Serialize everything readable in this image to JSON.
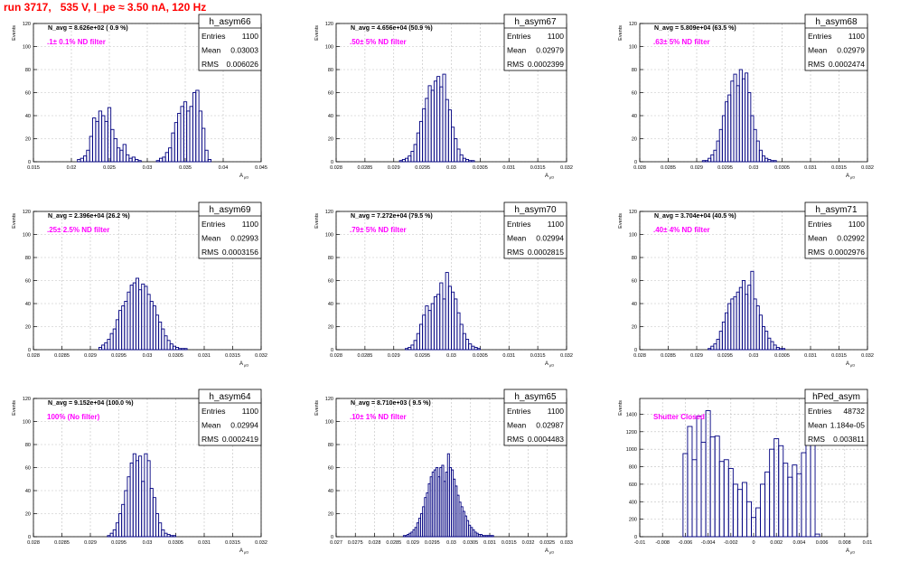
{
  "page": {
    "run_title": "run 3717,   535 V, I_pe ≈ 3.50 nA, 120 Hz"
  },
  "colors": {
    "hist": "#000080",
    "grid": "#bfbfbf",
    "note": "#ff00ff",
    "title": "#ff0000"
  },
  "chart_data": [
    {
      "type": "histogram",
      "name": "h_asym66",
      "stats": {
        "entries_label": "Entries",
        "entries": "1100",
        "mean_label": "Mean",
        "mean": "0.03003",
        "rms_label": "RMS",
        "rms": "0.006026"
      },
      "navg": "N_avg = 8.626e+02 ( 0.9 %)",
      "note": ".1± 0.1% ND filter",
      "ylabel": "Events",
      "xlabel": "A",
      "xlabel_sub": "μD",
      "xlim": [
        0.015,
        0.045
      ],
      "ylim": [
        0,
        120
      ],
      "xticks": [
        "0.015",
        "0.02",
        "0.025",
        "0.03",
        "0.035",
        "0.04",
        "0.045"
      ],
      "yticks": [
        "0",
        "20",
        "40",
        "60",
        "80",
        "100",
        "120"
      ],
      "x_edges": [
        0.0208,
        0.0212,
        0.0216,
        0.022,
        0.0224,
        0.0228,
        0.0232,
        0.0236,
        0.024,
        0.0244,
        0.0248,
        0.0252,
        0.0256,
        0.026,
        0.0264,
        0.0268,
        0.0272,
        0.0276,
        0.028,
        0.0284,
        0.0288,
        0.0292,
        0.0296,
        0.03,
        0.0304,
        0.0308,
        0.0312,
        0.0316,
        0.032,
        0.0324,
        0.0328,
        0.0332,
        0.0336,
        0.034,
        0.0344,
        0.0348,
        0.0352,
        0.0356,
        0.036,
        0.0364,
        0.0368,
        0.0372,
        0.0376,
        0.038,
        0.0384
      ],
      "values": [
        2,
        3,
        5,
        10,
        22,
        38,
        35,
        44,
        40,
        35,
        47,
        28,
        20,
        12,
        10,
        15,
        6,
        3,
        4,
        2,
        1,
        0,
        0,
        0,
        0,
        0,
        1,
        3,
        4,
        8,
        12,
        25,
        34,
        42,
        48,
        52,
        44,
        48,
        60,
        62,
        44,
        29,
        10,
        2
      ]
    },
    {
      "type": "histogram",
      "name": "h_asym67",
      "stats": {
        "entries_label": "Entries",
        "entries": "1100",
        "mean_label": "Mean",
        "mean": "0.02979",
        "rms_label": "RMS",
        "rms": "0.0002399"
      },
      "navg": "N_avg = 4.656e+04 (50.9 %)",
      "note": ".50± 5% ND filter",
      "ylabel": "Events",
      "xlabel": "A",
      "xlabel_sub": "μD",
      "xlim": [
        0.028,
        0.032
      ],
      "ylim": [
        0,
        120
      ],
      "xticks": [
        "0.028",
        "0.0285",
        "0.029",
        "0.0295",
        "0.03",
        "0.0305",
        "0.031",
        "0.0315",
        "0.032"
      ],
      "yticks": [
        "0",
        "20",
        "40",
        "60",
        "80",
        "100",
        "120"
      ],
      "x_edges": [
        0.0291,
        0.02915,
        0.0292,
        0.02925,
        0.0293,
        0.02935,
        0.0294,
        0.02945,
        0.0295,
        0.02955,
        0.0296,
        0.02965,
        0.0297,
        0.02975,
        0.0298,
        0.02985,
        0.0299,
        0.02995,
        0.03,
        0.03005,
        0.0301,
        0.03015,
        0.0302,
        0.03025,
        0.0303,
        0.03035,
        0.0304
      ],
      "values": [
        1,
        2,
        3,
        5,
        9,
        15,
        25,
        35,
        46,
        55,
        66,
        62,
        70,
        74,
        65,
        76,
        54,
        45,
        30,
        20,
        11,
        6,
        3,
        2,
        1,
        1
      ]
    },
    {
      "type": "histogram",
      "name": "h_asym68",
      "stats": {
        "entries_label": "Entries",
        "entries": "1100",
        "mean_label": "Mean",
        "mean": "0.02979",
        "rms_label": "RMS",
        "rms": "0.0002474"
      },
      "navg": "N_avg = 5.809e+04 (63.5 %)",
      "note": ".63± 5% ND filter",
      "ylabel": "Events",
      "xlabel": "A",
      "xlabel_sub": "μD",
      "xlim": [
        0.028,
        0.032
      ],
      "ylim": [
        0,
        120
      ],
      "xticks": [
        "0.028",
        "0.0285",
        "0.029",
        "0.0295",
        "0.03",
        "0.0305",
        "0.031",
        "0.0315",
        "0.032"
      ],
      "yticks": [
        "0",
        "20",
        "40",
        "60",
        "80",
        "100",
        "120"
      ],
      "x_edges": [
        0.0291,
        0.02915,
        0.0292,
        0.02925,
        0.0293,
        0.02935,
        0.0294,
        0.02945,
        0.0295,
        0.02955,
        0.0296,
        0.02965,
        0.0297,
        0.02975,
        0.0298,
        0.02985,
        0.0299,
        0.02995,
        0.03,
        0.03005,
        0.0301,
        0.03015,
        0.0302,
        0.03025,
        0.0303,
        0.03035,
        0.0304
      ],
      "values": [
        1,
        1,
        3,
        6,
        10,
        18,
        28,
        40,
        52,
        58,
        70,
        76,
        66,
        80,
        72,
        77,
        60,
        40,
        28,
        18,
        10,
        5,
        3,
        2,
        1,
        1
      ]
    },
    {
      "type": "histogram",
      "name": "h_asym69",
      "stats": {
        "entries_label": "Entries",
        "entries": "1100",
        "mean_label": "Mean",
        "mean": "0.02993",
        "rms_label": "RMS",
        "rms": "0.0003156"
      },
      "navg": "N_avg = 2.396e+04 (26.2 %)",
      "note": ".25± 2.5% ND filter",
      "ylabel": "Events",
      "xlabel": "A",
      "xlabel_sub": "μD",
      "xlim": [
        0.028,
        0.032
      ],
      "ylim": [
        0,
        120
      ],
      "xticks": [
        "0.028",
        "0.0285",
        "0.029",
        "0.0295",
        "0.03",
        "0.0305",
        "0.031",
        "0.0315",
        "0.032"
      ],
      "yticks": [
        "0",
        "20",
        "40",
        "60",
        "80",
        "100",
        "120"
      ],
      "x_edges": [
        0.02915,
        0.0292,
        0.02925,
        0.0293,
        0.02935,
        0.0294,
        0.02945,
        0.0295,
        0.02955,
        0.0296,
        0.02965,
        0.0297,
        0.02975,
        0.0298,
        0.02985,
        0.0299,
        0.02995,
        0.03,
        0.03005,
        0.0301,
        0.03015,
        0.0302,
        0.03025,
        0.0303,
        0.03035,
        0.0304,
        0.03045,
        0.0305,
        0.03055,
        0.0306,
        0.03065,
        0.0307
      ],
      "values": [
        2,
        4,
        6,
        9,
        14,
        18,
        26,
        34,
        38,
        42,
        50,
        56,
        58,
        62,
        52,
        57,
        55,
        48,
        42,
        38,
        30,
        24,
        18,
        12,
        8,
        5,
        3,
        2,
        1,
        1,
        1
      ]
    },
    {
      "type": "histogram",
      "name": "h_asym70",
      "stats": {
        "entries_label": "Entries",
        "entries": "1100",
        "mean_label": "Mean",
        "mean": "0.02994",
        "rms_label": "RMS",
        "rms": "0.0002815"
      },
      "navg": "N_avg = 7.272e+04 (79.5 %)",
      "note": ".79± 5% ND filter",
      "ylabel": "Events",
      "xlabel": "A",
      "xlabel_sub": "μD",
      "xlim": [
        0.028,
        0.032
      ],
      "ylim": [
        0,
        120
      ],
      "xticks": [
        "0.028",
        "0.0285",
        "0.029",
        "0.0295",
        "0.03",
        "0.0305",
        "0.031",
        "0.0315",
        "0.032"
      ],
      "yticks": [
        "0",
        "20",
        "40",
        "60",
        "80",
        "100",
        "120"
      ],
      "x_edges": [
        0.0292,
        0.02925,
        0.0293,
        0.02935,
        0.0294,
        0.02945,
        0.0295,
        0.02955,
        0.0296,
        0.02965,
        0.0297,
        0.02975,
        0.0298,
        0.02985,
        0.0299,
        0.02995,
        0.03,
        0.03005,
        0.0301,
        0.03015,
        0.0302,
        0.03025,
        0.0303,
        0.03035,
        0.0304,
        0.03045,
        0.0305
      ],
      "values": [
        1,
        2,
        4,
        8,
        14,
        22,
        30,
        38,
        34,
        40,
        46,
        48,
        58,
        44,
        67,
        55,
        50,
        44,
        32,
        22,
        14,
        9,
        5,
        3,
        2,
        1
      ]
    },
    {
      "type": "histogram",
      "name": "h_asym71",
      "stats": {
        "entries_label": "Entries",
        "entries": "1100",
        "mean_label": "Mean",
        "mean": "0.02992",
        "rms_label": "RMS",
        "rms": "0.0002976"
      },
      "navg": "N_avg = 3.704e+04 (40.5 %)",
      "note": ".40± 4% ND filter",
      "ylabel": "Events",
      "xlabel": "A",
      "xlabel_sub": "μD",
      "xlim": [
        0.028,
        0.032
      ],
      "ylim": [
        0,
        120
      ],
      "xticks": [
        "0.028",
        "0.0285",
        "0.029",
        "0.0295",
        "0.03",
        "0.0305",
        "0.031",
        "0.0315",
        "0.032"
      ],
      "yticks": [
        "0",
        "20",
        "40",
        "60",
        "80",
        "100",
        "120"
      ],
      "x_edges": [
        0.0292,
        0.02925,
        0.0293,
        0.02935,
        0.0294,
        0.02945,
        0.0295,
        0.02955,
        0.0296,
        0.02965,
        0.0297,
        0.02975,
        0.0298,
        0.02985,
        0.0299,
        0.02995,
        0.03,
        0.03005,
        0.0301,
        0.03015,
        0.0302,
        0.03025,
        0.0303,
        0.03035,
        0.0304,
        0.03045,
        0.0305,
        0.03055
      ],
      "values": [
        1,
        3,
        5,
        9,
        16,
        24,
        32,
        40,
        44,
        46,
        50,
        54,
        60,
        48,
        56,
        68,
        44,
        38,
        30,
        20,
        16,
        10,
        7,
        4,
        2,
        1,
        1
      ]
    },
    {
      "type": "histogram",
      "name": "h_asym64",
      "stats": {
        "entries_label": "Entries",
        "entries": "1100",
        "mean_label": "Mean",
        "mean": "0.02994",
        "rms_label": "RMS",
        "rms": "0.0002419"
      },
      "navg": "N_avg = 9.152e+04 (100.0 %)",
      "note": "100% (No filter)",
      "ylabel": "Events",
      "xlabel": "A",
      "xlabel_sub": "μD",
      "xlim": [
        0.028,
        0.032
      ],
      "ylim": [
        0,
        120
      ],
      "xticks": [
        "0.028",
        "0.0285",
        "0.029",
        "0.0295",
        "0.03",
        "0.0305",
        "0.031",
        "0.0315",
        "0.032"
      ],
      "yticks": [
        "0",
        "20",
        "40",
        "60",
        "80",
        "100",
        "120"
      ],
      "x_edges": [
        0.0293,
        0.02935,
        0.0294,
        0.02945,
        0.0295,
        0.02955,
        0.0296,
        0.02965,
        0.0297,
        0.02975,
        0.0298,
        0.02985,
        0.0299,
        0.02995,
        0.03,
        0.03005,
        0.0301,
        0.03015,
        0.0302,
        0.03025,
        0.0303,
        0.03035,
        0.0304,
        0.03045,
        0.0305
      ],
      "values": [
        1,
        3,
        6,
        12,
        20,
        28,
        40,
        52,
        64,
        72,
        66,
        70,
        48,
        72,
        66,
        42,
        34,
        20,
        12,
        6,
        3,
        2,
        1,
        1
      ]
    },
    {
      "type": "histogram",
      "name": "h_asym65",
      "stats": {
        "entries_label": "Entries",
        "entries": "1100",
        "mean_label": "Mean",
        "mean": "0.02987",
        "rms_label": "RMS",
        "rms": "0.0004483"
      },
      "navg": "N_avg = 8.710e+03 ( 9.5 %)",
      "note": ".10± 1% ND filter",
      "ylabel": "Events",
      "xlabel": "A",
      "xlabel_sub": "μD",
      "xlim": [
        0.027,
        0.033
      ],
      "ylim": [
        0,
        120
      ],
      "xticks": [
        "0.027",
        "0.0275",
        "0.028",
        "0.0285",
        "0.029",
        "0.0295",
        "0.03",
        "0.0305",
        "0.031",
        "0.0315",
        "0.032",
        "0.0325",
        "0.033"
      ],
      "yticks": [
        "0",
        "20",
        "40",
        "60",
        "80",
        "100",
        "120"
      ],
      "x_edges": [
        0.02875,
        0.0288,
        0.02885,
        0.0289,
        0.02895,
        0.029,
        0.02905,
        0.0291,
        0.02915,
        0.0292,
        0.02925,
        0.0293,
        0.02935,
        0.0294,
        0.02945,
        0.0295,
        0.02955,
        0.0296,
        0.02965,
        0.0297,
        0.02975,
        0.0298,
        0.02985,
        0.0299,
        0.02995,
        0.03,
        0.03005,
        0.0301,
        0.03015,
        0.0302,
        0.03025,
        0.0303,
        0.03035,
        0.0304,
        0.03045,
        0.0305,
        0.03055,
        0.0306,
        0.03065,
        0.0307,
        0.03075,
        0.0308,
        0.03085,
        0.0309,
        0.03095,
        0.031,
        0.03105,
        0.0311
      ],
      "values": [
        1,
        1,
        2,
        3,
        4,
        6,
        8,
        12,
        16,
        20,
        26,
        34,
        38,
        46,
        52,
        56,
        58,
        60,
        52,
        60,
        62,
        48,
        56,
        72,
        60,
        58,
        50,
        44,
        36,
        30,
        26,
        22,
        18,
        14,
        10,
        8,
        6,
        4,
        3,
        2,
        2,
        1,
        1,
        1,
        1,
        1,
        1
      ]
    },
    {
      "type": "histogram",
      "name": "hPed_asym",
      "stats": {
        "entries_label": "Entries",
        "entries": "48732",
        "mean_label": "Mean",
        "mean": "1.184e-05",
        "rms_label": "RMS",
        "rms": "0.003811"
      },
      "navg": "",
      "note": "Shutter Closed",
      "ylabel": "Events",
      "xlabel": "A",
      "xlabel_sub": "μD",
      "xlim": [
        -0.01,
        0.01
      ],
      "ylim": [
        0,
        1580
      ],
      "xticks": [
        "-0.01",
        "-0.008",
        "-0.006",
        "-0.004",
        "-0.002",
        "0",
        "0.002",
        "0.004",
        "0.006",
        "0.008",
        "0.01"
      ],
      "yticks": [
        "0",
        "200",
        "400",
        "600",
        "800",
        "1000",
        "1200",
        "1400"
      ],
      "x_edges": [
        -0.0062,
        -0.0058,
        -0.0054,
        -0.005,
        -0.0046,
        -0.0042,
        -0.0038,
        -0.0034,
        -0.003,
        -0.0026,
        -0.0022,
        -0.0018,
        -0.0014,
        -0.001,
        -0.0006,
        -0.0002,
        0.0002,
        0.0006,
        0.001,
        0.0014,
        0.0018,
        0.0022,
        0.0026,
        0.003,
        0.0034,
        0.0038,
        0.0042,
        0.0046,
        0.005,
        0.0054,
        0.0058,
        0.0062
      ],
      "values": [
        950,
        1260,
        880,
        1380,
        1080,
        1440,
        1140,
        1150,
        860,
        880,
        780,
        600,
        540,
        620,
        400,
        220,
        330,
        600,
        740,
        1000,
        1120,
        1040,
        840,
        680,
        820,
        720,
        960,
        1300,
        1200,
        30,
        0
      ]
    }
  ]
}
